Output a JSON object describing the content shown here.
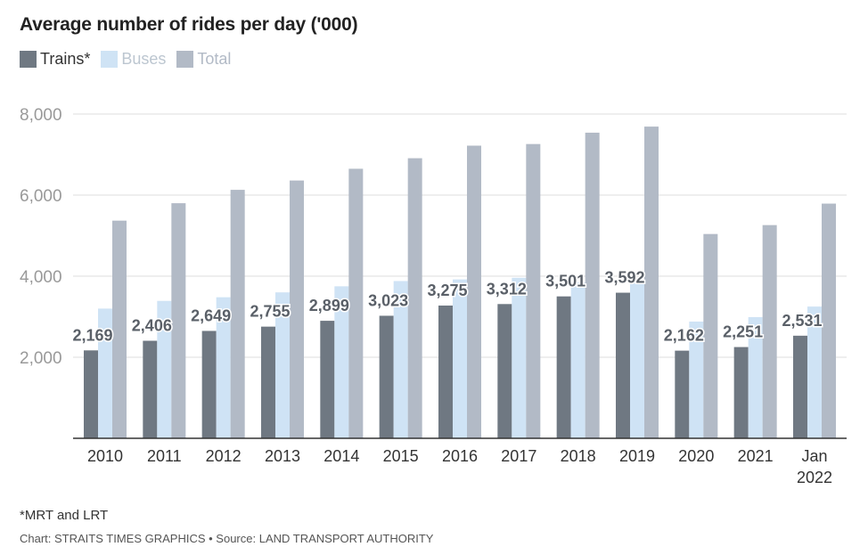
{
  "title": "Average number of rides per day ('000)",
  "legend": [
    {
      "label": "Trains*",
      "color": "#6f7882"
    },
    {
      "label": "Buses",
      "color": "#cfe3f5"
    },
    {
      "label": "Total",
      "color": "#b2bac6"
    }
  ],
  "footnote": "*MRT and LRT",
  "credit": "Chart: STRAITS TIMES GRAPHICS • Source: LAND TRANSPORT AUTHORITY",
  "chart_data": {
    "type": "bar",
    "title": "Average number of rides per day ('000)",
    "categories": [
      "2010",
      "2011",
      "2012",
      "2013",
      "2014",
      "2015",
      "2016",
      "2017",
      "2018",
      "2019",
      "2020",
      "2021",
      "Jan 2022"
    ],
    "series": [
      {
        "name": "Trains*",
        "values": [
          2169,
          2406,
          2649,
          2755,
          2899,
          3023,
          3275,
          3312,
          3501,
          3592,
          2162,
          2251,
          2531
        ]
      },
      {
        "name": "Buses",
        "values": [
          3200,
          3390,
          3480,
          3600,
          3750,
          3880,
          3920,
          3960,
          3840,
          3880,
          2880,
          2990,
          3250
        ]
      },
      {
        "name": "Total",
        "values": [
          5370,
          5800,
          6130,
          6360,
          6650,
          6910,
          7220,
          7260,
          7540,
          7690,
          5040,
          5260,
          5790
        ]
      }
    ],
    "data_labels": [
      "2,169",
      "2,406",
      "2,649",
      "2,755",
      "2,899",
      "3,023",
      "3,275",
      "3,312",
      "3,501",
      "3,592",
      "2,162",
      "2,251",
      "2,531"
    ],
    "y_ticks": [
      "2,000",
      "4,000",
      "6,000",
      "8,000"
    ],
    "ylim": [
      0,
      8000
    ],
    "xlabel": "",
    "ylabel": "",
    "grid": true,
    "legend_position": "top-left",
    "colors": {
      "trains": "#6f7882",
      "buses": "#cfe3f5",
      "total": "#b2bac6",
      "grid": "#dddddd",
      "axis": "#333333",
      "tick_text": "#999999",
      "label_text": "#5a6068"
    }
  }
}
